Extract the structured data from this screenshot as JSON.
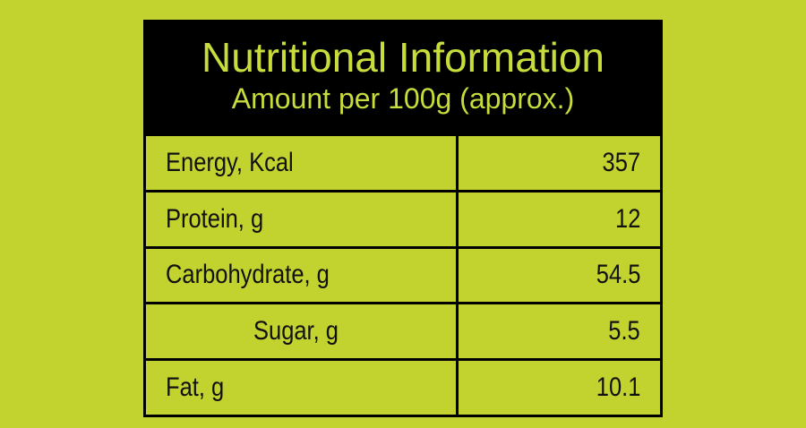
{
  "header": {
    "title": "Nutritional Information",
    "subtitle": "Amount per 100g (approx.)"
  },
  "table": {
    "rows": [
      [
        "Energy, Kcal",
        "357"
      ],
      [
        "Protein, g",
        "12"
      ],
      [
        "Carbohydrate, g",
        "54.5"
      ],
      [
        "Sugar, g",
        "5.5"
      ],
      [
        "Fat, g",
        "10.1"
      ]
    ]
  }
}
